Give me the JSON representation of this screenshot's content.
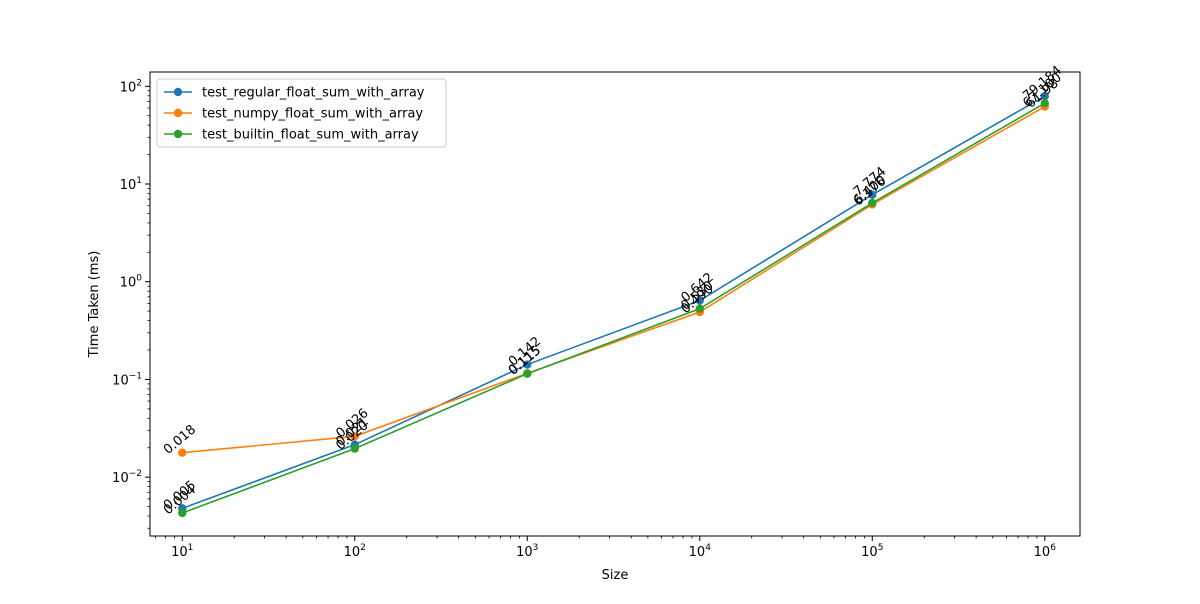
{
  "chart_data": {
    "type": "line",
    "title": "",
    "xlabel": "Size",
    "ylabel": "Time Taken (ms)",
    "xscale": "log",
    "yscale": "log",
    "x": [
      10,
      100,
      1000,
      10000,
      100000,
      1000000
    ],
    "x_tick_labels": [
      {
        "value": 10,
        "base": "10",
        "exp": "1"
      },
      {
        "value": 100,
        "base": "10",
        "exp": "2"
      },
      {
        "value": 1000,
        "base": "10",
        "exp": "3"
      },
      {
        "value": 10000,
        "base": "10",
        "exp": "4"
      },
      {
        "value": 100000,
        "base": "10",
        "exp": "5"
      },
      {
        "value": 1000000,
        "base": "10",
        "exp": "6"
      }
    ],
    "y_tick_labels": [
      {
        "value": 0.01,
        "base": "10",
        "exp": "−2"
      },
      {
        "value": 0.1,
        "base": "10",
        "exp": "−1"
      },
      {
        "value": 1,
        "base": "10",
        "exp": "0"
      },
      {
        "value": 10,
        "base": "10",
        "exp": "1"
      },
      {
        "value": 100,
        "base": "10",
        "exp": "2"
      }
    ],
    "xlim": [
      6.5,
      1600000
    ],
    "ylim": [
      0.0025,
      140
    ],
    "grid": false,
    "legend_position": "top-left",
    "series": [
      {
        "name": "test_regular_float_sum_with_array",
        "color": "#1f77b4",
        "values": [
          0.0048,
          0.0215,
          0.142,
          0.642,
          7.774,
          79.184
        ],
        "labels": [
          "0.005",
          "0.021",
          "0.142",
          "0.642",
          "7.774",
          "79.184"
        ]
      },
      {
        "name": "test_numpy_float_sum_with_array",
        "color": "#ff7f0e",
        "values": [
          0.0178,
          0.0262,
          0.1155,
          0.49,
          6.176,
          61.98
        ],
        "labels": [
          "0.018",
          "0.026",
          "0.115",
          "0.490",
          "6.176",
          "61.98"
        ]
      },
      {
        "name": "test_builtin_float_sum_with_array",
        "color": "#2ca02c",
        "values": [
          0.0043,
          0.0196,
          0.1145,
          0.53,
          6.4,
          67.1
        ],
        "labels": [
          "0.004",
          "0.020",
          "0.115",
          "0.530",
          "6.400",
          "67.100"
        ]
      }
    ]
  }
}
